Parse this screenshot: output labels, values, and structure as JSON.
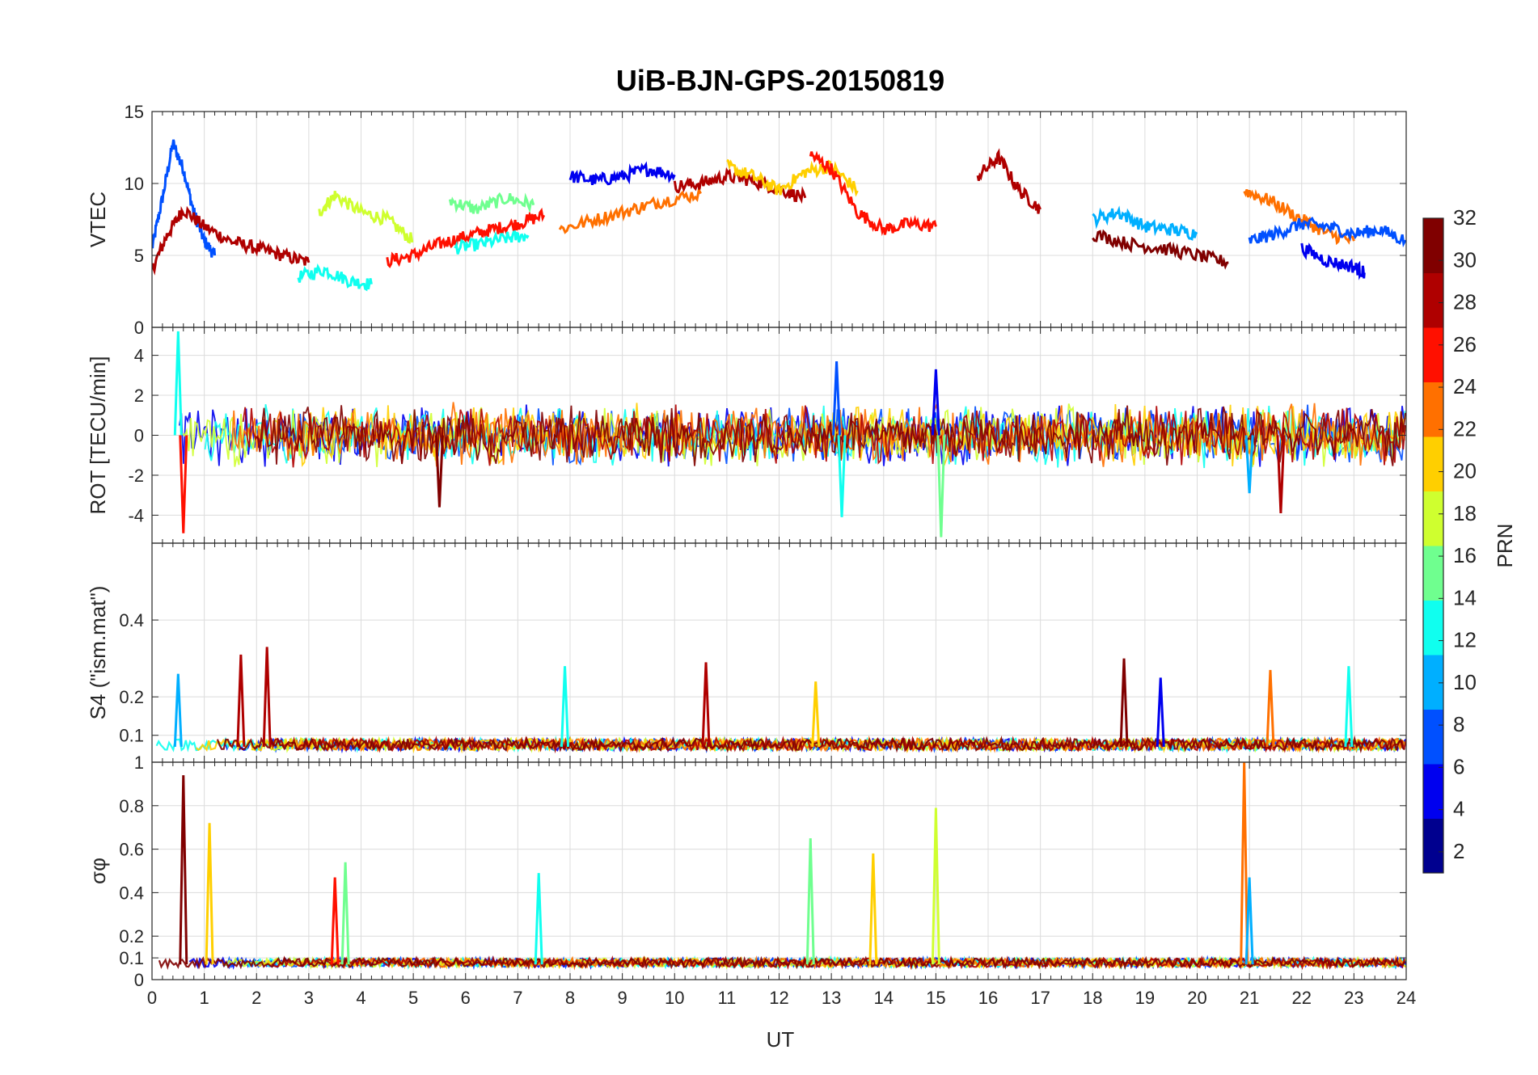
{
  "chart_data": {
    "type": "line",
    "title": "UiB-BJN-GPS-20150819",
    "xlabel": "UT",
    "xlim": [
      0,
      24
    ],
    "x_ticks": [
      0,
      1,
      2,
      3,
      4,
      5,
      6,
      7,
      8,
      9,
      10,
      11,
      12,
      13,
      14,
      15,
      16,
      17,
      18,
      19,
      20,
      21,
      22,
      23,
      24
    ],
    "colorbar": {
      "label": "PRN",
      "range": [
        1,
        32
      ],
      "ticks": [
        2,
        4,
        6,
        8,
        10,
        12,
        14,
        16,
        18,
        20,
        22,
        24,
        26,
        28,
        30,
        32
      ],
      "colors": [
        "#00008f",
        "#0000ef",
        "#0050ff",
        "#00afff",
        "#10ffef",
        "#6fff8f",
        "#cfff2f",
        "#ffcf00",
        "#ff7000",
        "#ff1000",
        "#af0000",
        "#800000"
      ]
    },
    "panels": [
      {
        "name": "vtec",
        "ylabel": "VTEC",
        "ylim": [
          0,
          15
        ],
        "yticks": [
          0,
          5,
          10,
          15
        ],
        "series": [
          {
            "prn": 8,
            "x": [
              0,
              0.2,
              0.4,
              0.6,
              0.8,
              1.0,
              1.2
            ],
            "y": [
              5.5,
              9,
              12.8,
              11,
              8,
              6,
              5
            ]
          },
          {
            "prn": 30,
            "x": [
              0,
              0.3,
              0.6,
              1.0,
              1.5,
              2.0,
              2.5,
              3.0
            ],
            "y": [
              4,
              6.5,
              8.2,
              7,
              6,
              5.5,
              5,
              4.5
            ]
          },
          {
            "prn": 17,
            "x": [
              3.2,
              3.5,
              4.0,
              4.5,
              5.0
            ],
            "y": [
              8,
              9.2,
              8,
              7.5,
              6
            ]
          },
          {
            "prn": 13,
            "x": [
              2.8,
              3.3,
              3.8,
              4.2
            ],
            "y": [
              3.5,
              4,
              3.2,
              3
            ]
          },
          {
            "prn": 26,
            "x": [
              4.5,
              5.0,
              5.5,
              6.0,
              6.5,
              7.0,
              7.5
            ],
            "y": [
              4.6,
              5,
              5.8,
              6.3,
              6.8,
              7.2,
              7.8
            ]
          },
          {
            "prn": 16,
            "x": [
              5.7,
              6.2,
              6.8,
              7.3
            ],
            "y": [
              8.8,
              8.2,
              9,
              8.5
            ]
          },
          {
            "prn": 11,
            "x": [
              5.8,
              6.3,
              6.8,
              7.2
            ],
            "y": [
              5.5,
              5.8,
              6.2,
              6.4
            ]
          },
          {
            "prn": 4,
            "x": [
              8.0,
              8.5,
              9.0,
              9.5,
              10.0
            ],
            "y": [
              10.5,
              10.2,
              10.5,
              11,
              10.6
            ]
          },
          {
            "prn": 24,
            "x": [
              7.8,
              8.5,
              9.2,
              9.8,
              10.5
            ],
            "y": [
              6.8,
              7.5,
              8.2,
              8.8,
              9.3
            ]
          },
          {
            "prn": 28,
            "x": [
              10.0,
              10.5,
              11.0,
              11.5,
              12.0,
              12.5
            ],
            "y": [
              9.8,
              10,
              10.5,
              10.2,
              9.6,
              9
            ]
          },
          {
            "prn": 20,
            "x": [
              11.0,
              11.5,
              12.0,
              12.5,
              13.0,
              13.5
            ],
            "y": [
              11.2,
              10.5,
              9.5,
              10.8,
              11.2,
              9.5
            ]
          },
          {
            "prn": 27,
            "x": [
              12.6,
              13.0,
              13.5,
              14.0,
              14.5,
              15.0
            ],
            "y": [
              12,
              11,
              8,
              6.8,
              7.2,
              7
            ]
          },
          {
            "prn": 29,
            "x": [
              15.8,
              16.2,
              16.6,
              17.0
            ],
            "y": [
              10.5,
              11.8,
              9.5,
              8.2
            ]
          },
          {
            "prn": 9,
            "x": [
              18.0,
              18.5,
              19.0,
              19.5,
              20.0
            ],
            "y": [
              7.5,
              8,
              7,
              6.8,
              6.5
            ]
          },
          {
            "prn": 31,
            "x": [
              18.0,
              18.7,
              19.3,
              20.0,
              20.6
            ],
            "y": [
              6.5,
              5.8,
              5.5,
              5,
              4.5
            ]
          },
          {
            "prn": 23,
            "x": [
              20.9,
              21.4,
              22.0,
              22.5,
              23.0
            ],
            "y": [
              9.5,
              8.8,
              7.5,
              6.5,
              6
            ]
          },
          {
            "prn": 7,
            "x": [
              21.0,
              21.5,
              22.0,
              22.5,
              23.0,
              23.5,
              24.0
            ],
            "y": [
              6,
              6.5,
              7.2,
              7,
              6.5,
              6.8,
              6
            ]
          },
          {
            "prn": 5,
            "x": [
              22.0,
              22.5,
              23.0,
              23.2
            ],
            "y": [
              5.5,
              4.6,
              4.2,
              3.8
            ]
          }
        ]
      },
      {
        "name": "rot",
        "ylabel": "ROT [TECU/min]",
        "ylim": [
          -5.4,
          5.4
        ],
        "yticks": [
          -4,
          -2,
          0,
          2,
          4
        ],
        "notable_spikes": [
          {
            "x": 0.5,
            "y": 5.2,
            "prn": 12
          },
          {
            "x": 0.6,
            "y": -4.9,
            "prn": 26
          },
          {
            "x": 5.5,
            "y": -3.6,
            "prn": 31
          },
          {
            "x": 13.1,
            "y": 3.7,
            "prn": 6
          },
          {
            "x": 13.2,
            "y": -4.1,
            "prn": 13
          },
          {
            "x": 15.1,
            "y": -5.1,
            "prn": 15
          },
          {
            "x": 15.0,
            "y": 3.3,
            "prn": 5
          },
          {
            "x": 21.0,
            "y": -2.9,
            "prn": 9
          },
          {
            "x": 21.6,
            "y": -3.9,
            "prn": 29
          }
        ]
      },
      {
        "name": "s4",
        "ylabel": "S4 (\"ism.mat\")",
        "ylim": [
          0.03,
          0.6
        ],
        "yticks": [
          0.1,
          0.2,
          0.4
        ],
        "notable_peaks": [
          {
            "x": 0.5,
            "y": 0.26,
            "prn": 9
          },
          {
            "x": 1.7,
            "y": 0.31,
            "prn": 30
          },
          {
            "x": 2.2,
            "y": 0.33,
            "prn": 28
          },
          {
            "x": 7.9,
            "y": 0.28,
            "prn": 12
          },
          {
            "x": 10.6,
            "y": 0.29,
            "prn": 28
          },
          {
            "x": 12.7,
            "y": 0.24,
            "prn": 20
          },
          {
            "x": 18.6,
            "y": 0.3,
            "prn": 31
          },
          {
            "x": 19.3,
            "y": 0.25,
            "prn": 4
          },
          {
            "x": 21.4,
            "y": 0.27,
            "prn": 23
          },
          {
            "x": 22.9,
            "y": 0.28,
            "prn": 11
          }
        ]
      },
      {
        "name": "sigma_phi",
        "ylabel": "σφ",
        "ylim": [
          0,
          1
        ],
        "yticks": [
          0,
          0.1,
          0.2,
          0.4,
          0.6,
          0.8
        ],
        "top_tick_label": "1",
        "notable_peaks": [
          {
            "x": 0.6,
            "y": 0.94,
            "prn": 31
          },
          {
            "x": 1.1,
            "y": 0.72,
            "prn": 20
          },
          {
            "x": 3.5,
            "y": 0.47,
            "prn": 27
          },
          {
            "x": 3.7,
            "y": 0.54,
            "prn": 15
          },
          {
            "x": 7.4,
            "y": 0.49,
            "prn": 12
          },
          {
            "x": 12.6,
            "y": 0.65,
            "prn": 16
          },
          {
            "x": 13.8,
            "y": 0.58,
            "prn": 20
          },
          {
            "x": 15.0,
            "y": 0.79,
            "prn": 19
          },
          {
            "x": 20.9,
            "y": 1.0,
            "prn": 23
          },
          {
            "x": 21.0,
            "y": 0.47,
            "prn": 9
          }
        ]
      }
    ]
  }
}
